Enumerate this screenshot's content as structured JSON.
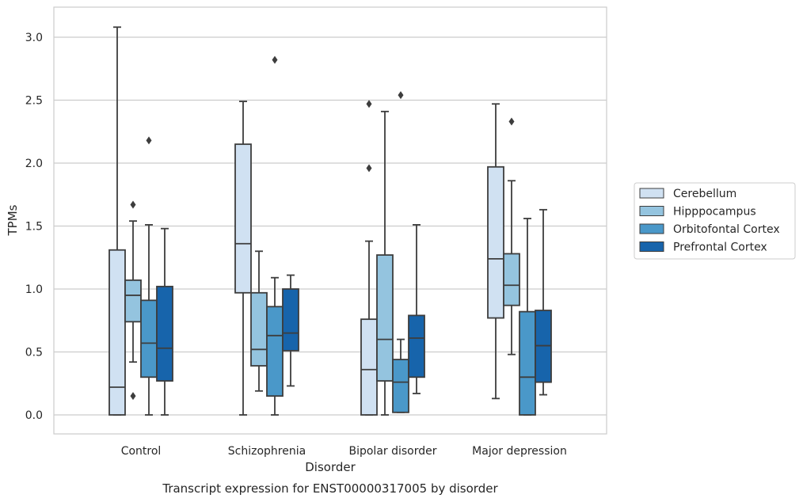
{
  "chart_data": {
    "type": "boxplot",
    "title": "Transcript expression for ENST00000317005 by disorder",
    "xlabel": "Disorder",
    "ylabel": "TPMs",
    "ylim": [
      -0.15,
      3.24
    ],
    "yticks": [
      0.0,
      0.5,
      1.0,
      1.5,
      2.0,
      2.5,
      3.0
    ],
    "ytick_labels": [
      "0.0",
      "0.5",
      "1.0",
      "1.5",
      "2.0",
      "2.5",
      "3.0"
    ],
    "grid": "horizontal",
    "legend_position": "right",
    "categories": [
      "Control",
      "Schizophrenia",
      "Bipolar disorder",
      "Major depression"
    ],
    "series": [
      {
        "name": "Cerebellum",
        "color": "#d0e1f2",
        "boxes": [
          {
            "min": 0.0,
            "q1": 0.0,
            "median": 0.22,
            "q3": 1.31,
            "max": 3.08,
            "outliers": []
          },
          {
            "min": 0.0,
            "q1": 0.97,
            "median": 1.36,
            "q3": 2.15,
            "max": 2.49,
            "outliers": []
          },
          {
            "min": 0.0,
            "q1": 0.0,
            "median": 0.36,
            "q3": 0.76,
            "max": 1.38,
            "outliers": [
              1.96,
              2.47
            ]
          },
          {
            "min": 0.13,
            "q1": 0.77,
            "median": 1.24,
            "q3": 1.97,
            "max": 2.47,
            "outliers": []
          }
        ]
      },
      {
        "name": "Hipppocampus",
        "color": "#94c4df",
        "boxes": [
          {
            "min": 0.42,
            "q1": 0.74,
            "median": 0.95,
            "q3": 1.07,
            "max": 1.54,
            "outliers": [
              0.15,
              1.67
            ]
          },
          {
            "min": 0.19,
            "q1": 0.39,
            "median": 0.52,
            "q3": 0.97,
            "max": 1.3,
            "outliers": []
          },
          {
            "min": 0.0,
            "q1": 0.27,
            "median": 0.6,
            "q3": 1.27,
            "max": 2.41,
            "outliers": []
          },
          {
            "min": 0.48,
            "q1": 0.87,
            "median": 1.03,
            "q3": 1.28,
            "max": 1.86,
            "outliers": [
              2.33
            ]
          }
        ]
      },
      {
        "name": "Orbitofontal Cortex",
        "color": "#4a98c9",
        "boxes": [
          {
            "min": 0.0,
            "q1": 0.3,
            "median": 0.57,
            "q3": 0.91,
            "max": 1.51,
            "outliers": [
              2.18
            ]
          },
          {
            "min": 0.0,
            "q1": 0.15,
            "median": 0.63,
            "q3": 0.86,
            "max": 1.09,
            "outliers": [
              2.82
            ]
          },
          {
            "min": 0.02,
            "q1": 0.02,
            "median": 0.26,
            "q3": 0.44,
            "max": 0.6,
            "outliers": [
              2.54
            ]
          },
          {
            "min": 0.0,
            "q1": 0.0,
            "median": 0.3,
            "q3": 0.82,
            "max": 1.56,
            "outliers": []
          }
        ]
      },
      {
        "name": "Prefrontal Cortex",
        "color": "#1764ab",
        "boxes": [
          {
            "min": 0.0,
            "q1": 0.27,
            "median": 0.53,
            "q3": 1.02,
            "max": 1.48,
            "outliers": []
          },
          {
            "min": 0.23,
            "q1": 0.51,
            "median": 0.65,
            "q3": 1.0,
            "max": 1.11,
            "outliers": []
          },
          {
            "min": 0.17,
            "q1": 0.3,
            "median": 0.61,
            "q3": 0.79,
            "max": 1.51,
            "outliers": []
          },
          {
            "min": 0.16,
            "q1": 0.26,
            "median": 0.55,
            "q3": 0.83,
            "max": 1.63,
            "outliers": []
          }
        ]
      }
    ]
  }
}
